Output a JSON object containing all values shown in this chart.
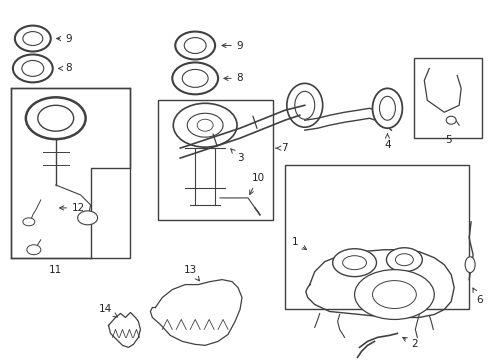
{
  "bg_color": "#ffffff",
  "line_color": "#404040",
  "text_color": "#222222",
  "fs": 7.5,
  "figsize": [
    4.89,
    3.6
  ],
  "dpi": 100
}
